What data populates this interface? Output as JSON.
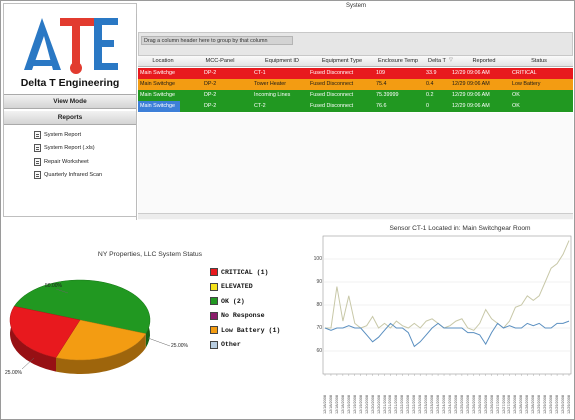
{
  "brand": {
    "logo_letters": "ΔTE",
    "name": "Delta T Engineering"
  },
  "sidebar": {
    "view_mode": "View Mode",
    "reports_header": "Reports",
    "reports": [
      "System Report",
      "System Report (.xls)",
      "Repair Worksheet",
      "Quarterly Infrared Scan"
    ]
  },
  "system": {
    "title": "System",
    "group_hint": "Drag a column header here to group by that column",
    "columns": [
      "Location",
      "MCC-Panel",
      "Equipment ID",
      "Equipment Type",
      "Enclosure Temp",
      "Delta T",
      "Reported",
      "Status"
    ],
    "rows": [
      {
        "status_key": "critical",
        "cells": [
          "Main Switchge",
          "DP-2",
          "CT-1",
          "Fused Disconnect",
          "109",
          "33.9",
          "12/29 09:06 AM",
          "CRITICAL"
        ]
      },
      {
        "status_key": "low",
        "cells": [
          "Main Switchge",
          "DP-2",
          "Tower Heater",
          "Fused Disconnect",
          "75.4",
          "0.4",
          "12/29 09:06 AM",
          "Low Battery"
        ]
      },
      {
        "status_key": "ok",
        "cells": [
          "Main Switchge",
          "DP-2",
          "Incoming Lines",
          "Fused Disconnect",
          "75.39999",
          "0.2",
          "12/29 09:06 AM",
          "OK"
        ]
      },
      {
        "status_key": "ok",
        "cells": [
          "Main Switchge",
          "DP-2",
          "CT-2",
          "Fused Disconnect",
          "76.6",
          "0",
          "12/29 09:06 AM",
          "OK"
        ]
      }
    ]
  },
  "colors": {
    "critical": "#e8191e",
    "elevated": "#f5e21a",
    "ok": "#219821",
    "no_response": "#8b1d6b",
    "low_battery": "#f39c12",
    "other": "#b8cde0",
    "selected": "#3d7fd8"
  },
  "pie": {
    "title": "NY Properties, LLC System Status",
    "legend": [
      {
        "label": "CRITICAL (1)",
        "color_key": "critical"
      },
      {
        "label": "ELEVATED",
        "color_key": "elevated"
      },
      {
        "label": "OK (2)",
        "color_key": "ok"
      },
      {
        "label": "No Response",
        "color_key": "no_response"
      },
      {
        "label": "Low Battery (1)",
        "color_key": "low_battery"
      },
      {
        "label": "Other",
        "color_key": "other"
      }
    ],
    "slice_labels": {
      "ok": "50.00%",
      "low_battery": "25.00%",
      "critical": "25.00%"
    }
  },
  "chart_data": [
    {
      "type": "pie",
      "title": "NY Properties, LLC System Status",
      "categories": [
        "CRITICAL",
        "OK",
        "Low Battery"
      ],
      "values": [
        25,
        50,
        25
      ],
      "value_labels": [
        "25.00%",
        "50.00%",
        "25.00%"
      ],
      "legend": [
        "CRITICAL (1)",
        "ELEVATED",
        "OK (2)",
        "No Response",
        "Low Battery (1)",
        "Other"
      ],
      "legend_placement": "right"
    },
    {
      "type": "line",
      "title": "Sensor CT-1 Located in: Main Switchgear Room",
      "ylim": [
        50,
        110
      ],
      "yticks": [
        "60",
        "70",
        "80",
        "90",
        "100"
      ],
      "xtick_count": 42,
      "x_range": [
        "12/18/2008",
        "12/29/2008"
      ],
      "series": [
        {
          "color": "#c8c8a8",
          "values": [
            70,
            70,
            88,
            73,
            84,
            72,
            70,
            71,
            75,
            70,
            72,
            70,
            73,
            71,
            70,
            72,
            70,
            73,
            74,
            72,
            70,
            71,
            73,
            74,
            70,
            69,
            72,
            78,
            74,
            72,
            70,
            73,
            79,
            80,
            84,
            82,
            84,
            90,
            96,
            98,
            102,
            108
          ]
        },
        {
          "color": "#5a8fc0",
          "values": [
            70,
            69,
            70,
            70,
            71,
            70,
            70,
            67,
            64,
            66,
            69,
            72,
            70,
            70,
            68,
            62,
            64,
            67,
            70,
            72,
            70,
            70,
            70,
            70,
            68,
            68,
            67,
            63,
            68,
            72,
            70,
            71,
            70,
            70,
            72,
            71,
            72,
            70,
            70,
            72,
            72,
            73
          ]
        }
      ]
    }
  ],
  "line_chart": {
    "title": "Sensor CT-1 Located in: Main Switchgear Room",
    "yticks": [
      "60",
      "70",
      "80",
      "90",
      "100"
    ],
    "xticks": [
      "12/18/2008",
      "12/18/2008",
      "12/18/2008",
      "12/18/2008",
      "12/19/2008",
      "12/19/2008",
      "12/19/2008",
      "12/20/2008",
      "12/20/2008",
      "12/20/2008",
      "12/21/2008",
      "12/21/2008",
      "12/21/2008",
      "12/22/2008",
      "12/22/2008",
      "12/22/2008",
      "12/23/2008",
      "12/23/2008",
      "12/23/2008",
      "12/24/2008",
      "12/24/2008",
      "12/24/2008",
      "12/25/2008",
      "12/25/2008",
      "12/25/2008",
      "12/26/2008",
      "12/26/2008",
      "12/26/2008",
      "12/26/2008",
      "12/27/2008",
      "12/27/2008",
      "12/27/2008",
      "12/28/2008",
      "12/28/2008",
      "12/28/2008",
      "12/28/2008",
      "12/29/2008",
      "12/29/2008",
      "12/29/2008",
      "12/29/2008",
      "12/29/2008",
      "12/29/2008"
    ]
  }
}
